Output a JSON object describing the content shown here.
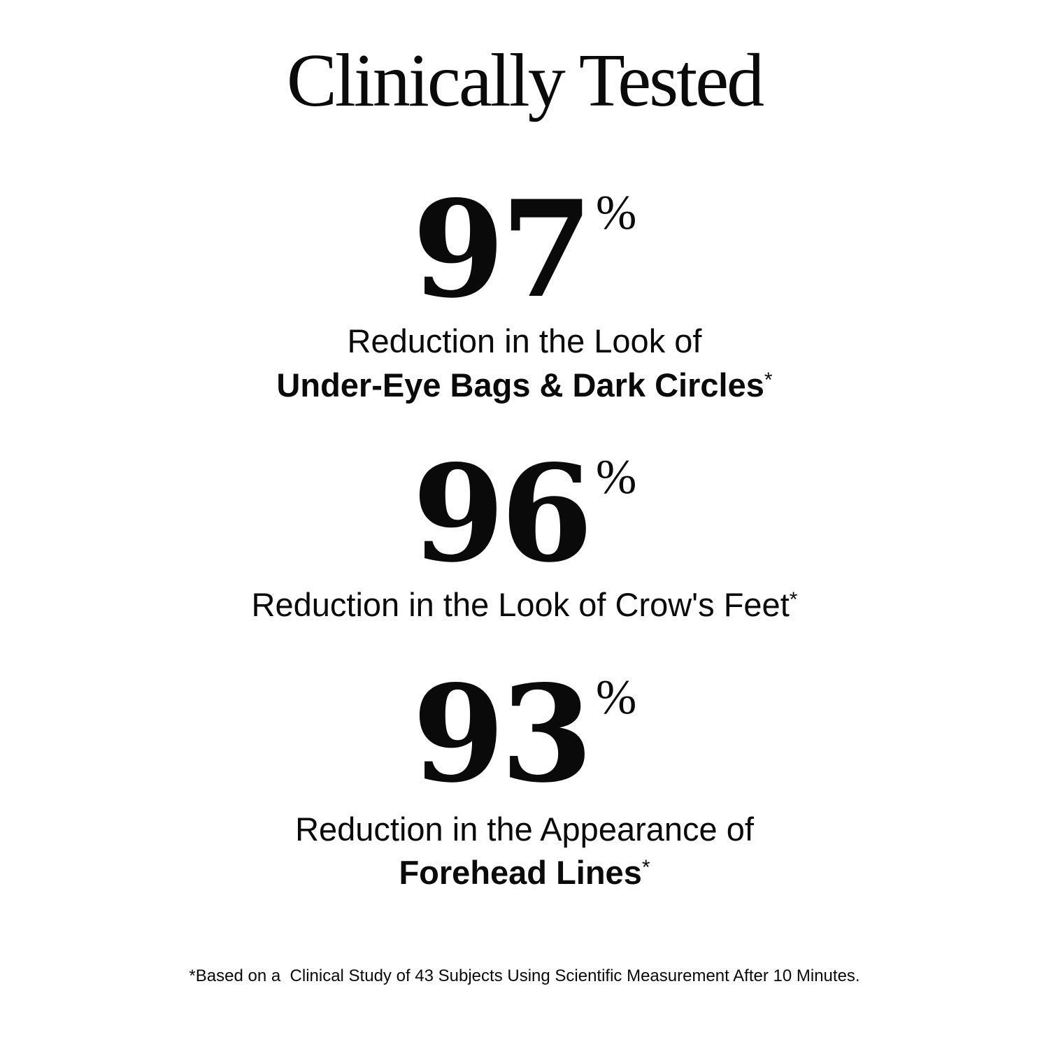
{
  "title": "Clinically Tested",
  "stats": [
    {
      "value": "97",
      "unit": "%",
      "line1": "Reduction in the Look of",
      "line2": "Under-Eye Bags & Dark Circles",
      "mark": "*"
    },
    {
      "value": "96",
      "unit": "%",
      "line1": "Reduction in the Look of Crow's Feet",
      "mark": "*"
    },
    {
      "value": "93",
      "unit": "%",
      "line1": "Reduction in the Appearance of",
      "line2": "Forehead Lines",
      "mark": "*"
    }
  ],
  "footnote": "*Based on a  Clinical Study of 43 Subjects Using Scientific Measurement After 10 Minutes."
}
